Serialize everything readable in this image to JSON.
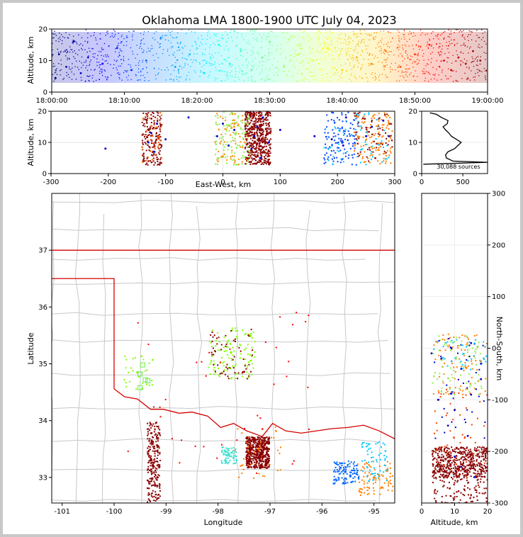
{
  "title": "Oklahoma LMA 1800-1900 UTC July 04, 2023",
  "chart_data": [
    {
      "id": "time_height",
      "type": "scatter",
      "ylabel": "Altitude, km",
      "xlabel": "",
      "x_ticks": [
        "18:00:00",
        "18:10:00",
        "18:20:00",
        "18:30:00",
        "18:40:00",
        "18:50:00",
        "19:00:00"
      ],
      "xlim_min": [
        0,
        60
      ],
      "ylim": [
        0,
        20
      ],
      "y_ticks": [
        0,
        10,
        20
      ],
      "colormap": "jet, colored by time",
      "points_min_alt": [
        [
          0.5,
          4.5
        ],
        [
          1,
          12
        ],
        [
          2,
          8
        ],
        [
          3,
          16
        ],
        [
          4,
          6
        ],
        [
          5,
          11
        ],
        [
          7,
          9
        ],
        [
          9,
          14
        ],
        [
          11,
          7
        ],
        [
          13,
          10
        ],
        [
          15,
          17
        ],
        [
          17,
          8
        ],
        [
          19,
          12
        ],
        [
          21,
          6
        ],
        [
          23,
          15
        ],
        [
          24.5,
          9
        ],
        [
          26,
          13
        ],
        [
          27.5,
          7
        ],
        [
          29,
          11
        ],
        [
          30,
          16
        ],
        [
          32,
          8
        ],
        [
          34,
          12
        ],
        [
          36,
          10
        ],
        [
          38,
          14
        ],
        [
          40,
          7
        ],
        [
          42,
          11
        ],
        [
          44,
          9
        ],
        [
          46,
          13
        ],
        [
          48,
          8
        ],
        [
          50,
          12
        ],
        [
          52,
          15
        ],
        [
          54,
          10
        ],
        [
          55,
          7
        ],
        [
          56,
          11
        ],
        [
          57,
          9
        ],
        [
          58,
          13
        ],
        [
          59,
          10
        ]
      ]
    },
    {
      "id": "ew_height",
      "type": "scatter",
      "xlabel": "East-West, km",
      "ylabel": "Altitude, km",
      "xlim": [
        -300,
        300
      ],
      "ylim": [
        0,
        20
      ],
      "x_ticks": [
        -300,
        -200,
        -100,
        0,
        100,
        200,
        300
      ],
      "y_ticks": [
        0,
        10,
        20
      ],
      "points": [
        [
          -205,
          8
        ],
        [
          -130,
          10
        ],
        [
          -125,
          13
        ],
        [
          -120,
          7
        ],
        [
          -115,
          16
        ],
        [
          -100,
          11
        ],
        [
          -60,
          18
        ],
        [
          -10,
          12
        ],
        [
          0,
          16
        ],
        [
          10,
          9
        ],
        [
          20,
          14
        ],
        [
          50,
          8
        ],
        [
          55,
          12
        ],
        [
          60,
          15
        ],
        [
          65,
          5
        ],
        [
          70,
          18
        ],
        [
          80,
          10
        ],
        [
          100,
          14
        ],
        [
          160,
          12
        ],
        [
          190,
          11
        ],
        [
          210,
          9
        ],
        [
          215,
          18
        ],
        [
          250,
          12
        ],
        [
          260,
          15
        ],
        [
          280,
          17
        ],
        [
          290,
          12
        ]
      ]
    },
    {
      "id": "altitude_histogram",
      "type": "line",
      "annotation": "30,088 sources",
      "xlim": [
        0,
        800
      ],
      "ylim": [
        0,
        20
      ],
      "x_ticks": [
        0,
        500
      ],
      "y_ticks": [
        0,
        10,
        20
      ],
      "profile": [
        [
          20,
          3
        ],
        [
          800,
          3.6
        ],
        [
          380,
          4
        ],
        [
          300,
          5
        ],
        [
          290,
          6
        ],
        [
          320,
          7
        ],
        [
          400,
          8
        ],
        [
          440,
          9
        ],
        [
          480,
          10
        ],
        [
          420,
          11
        ],
        [
          360,
          12
        ],
        [
          330,
          13
        ],
        [
          290,
          14
        ],
        [
          260,
          15
        ],
        [
          310,
          16
        ],
        [
          320,
          17
        ],
        [
          240,
          18
        ],
        [
          180,
          19
        ],
        [
          100,
          19.5
        ]
      ]
    },
    {
      "id": "plan_view",
      "type": "scatter",
      "xlabel": "Longitude",
      "ylabel": "Latitude",
      "xlim": [
        -101.2,
        -94.6
      ],
      "ylim": [
        32.55,
        38.0
      ],
      "x_ticks": [
        -101,
        -100,
        -99,
        -98,
        -97,
        -96,
        -95
      ],
      "y_ticks": [
        33,
        34,
        35,
        36,
        37
      ],
      "clusters": [
        {
          "center": [
            -99.25,
            33.2
          ],
          "color": "#8b0000",
          "note": "line"
        },
        {
          "center": [
            -97.25,
            33.45
          ],
          "color": "#8b0000"
        },
        {
          "center": [
            -97.75,
            35.2
          ],
          "color": "#7fff00"
        },
        {
          "center": [
            -97.8,
            33.4
          ],
          "color": "#40e0d0"
        },
        {
          "center": [
            -95.55,
            33.1
          ],
          "color": "#0066ff"
        },
        {
          "center": [
            -95.0,
            33.0
          ],
          "color": "#ff8000"
        },
        {
          "center": [
            -99.55,
            34.85
          ],
          "color": "#7fff00"
        }
      ]
    },
    {
      "id": "ns_height",
      "type": "scatter",
      "xlabel": "Altitude, km",
      "ylabel": "North-South, km",
      "xlim": [
        0,
        20
      ],
      "ylim": [
        -300,
        300
      ],
      "x_ticks": [
        0,
        10,
        20
      ],
      "y_ticks": [
        -300,
        -200,
        -100,
        0,
        100,
        200,
        300
      ],
      "points": [
        [
          3,
          -10
        ],
        [
          6,
          -20
        ],
        [
          9,
          0
        ],
        [
          12,
          -40
        ],
        [
          15,
          10
        ],
        [
          18,
          -60
        ],
        [
          5,
          -100
        ],
        [
          10,
          -120
        ],
        [
          15,
          -90
        ],
        [
          8,
          -150
        ],
        [
          14,
          -170
        ],
        [
          18,
          -30
        ],
        [
          10,
          -210
        ],
        [
          12,
          -230
        ],
        [
          16,
          -250
        ]
      ]
    }
  ],
  "colors": {
    "state_border": "#d40000",
    "county_lines": "#c8c8c8",
    "dense_core": "#8b0000"
  }
}
